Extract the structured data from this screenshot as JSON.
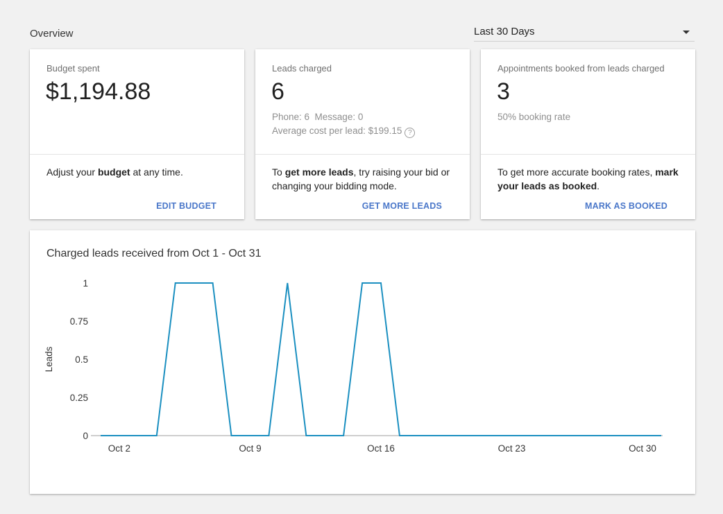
{
  "header": {
    "title": "Overview",
    "range_select": {
      "value": "Last 30 Days"
    }
  },
  "cards": [
    {
      "label": "Budget spent",
      "value": "$1,194.88",
      "desc_parts": [
        [
          "Adjust your ",
          false
        ],
        [
          "budget",
          true
        ],
        [
          " at any time.",
          false
        ]
      ],
      "action": "EDIT BUDGET"
    },
    {
      "label": "Leads charged",
      "value": "6",
      "sub1": "Phone: 6  Message: 0",
      "sub2": "Average cost per lead: $199.15",
      "desc_parts": [
        [
          "To ",
          false
        ],
        [
          "get more leads",
          true
        ],
        [
          ", try raising your bid or changing your bidding mode.",
          false
        ]
      ],
      "action": "GET MORE LEADS"
    },
    {
      "label": "Appointments booked from leads charged",
      "value": "3",
      "sub1": "50% booking rate",
      "desc_parts": [
        [
          "To get more accurate booking rates, ",
          false
        ],
        [
          "mark your leads as booked",
          true
        ],
        [
          ".",
          false
        ]
      ],
      "action": "MARK AS BOOKED"
    }
  ],
  "icons": {
    "help": "help-circle-icon",
    "dropdown": "caret-down-icon"
  },
  "colors": {
    "accent": "#4a77c9",
    "series": "#1a8fc0",
    "axis": "#333333"
  },
  "chart_data": {
    "type": "line",
    "title": "Charged leads received from Oct 1 - Oct 31",
    "ylabel": "Leads",
    "xlabel": "",
    "ylim": [
      0,
      1
    ],
    "yticks": [
      0,
      0.25,
      0.5,
      0.75,
      1
    ],
    "yticklabels": [
      "0",
      "0.25",
      "0.5",
      "0.75",
      "1"
    ],
    "xlim": [
      "Oct 1",
      "Oct 31"
    ],
    "xticks": [
      2,
      9,
      16,
      23,
      30
    ],
    "xticklabels": [
      "Oct 2",
      "Oct 9",
      "Oct 16",
      "Oct 23",
      "Oct 30"
    ],
    "series": [
      {
        "x": [
          1,
          2,
          3,
          4,
          5,
          6,
          7,
          8,
          9,
          10,
          11,
          12,
          13,
          14,
          15,
          16,
          17,
          18,
          19,
          20,
          21,
          22,
          23,
          24,
          25,
          26,
          27,
          28,
          29,
          30,
          31
        ],
        "y": [
          0,
          0,
          0,
          0,
          1,
          1,
          1,
          0,
          0,
          0,
          1,
          0,
          0,
          0,
          1,
          1,
          0,
          0,
          0,
          0,
          0,
          0,
          0,
          0,
          0,
          0,
          0,
          0,
          0,
          0,
          0
        ]
      }
    ]
  }
}
